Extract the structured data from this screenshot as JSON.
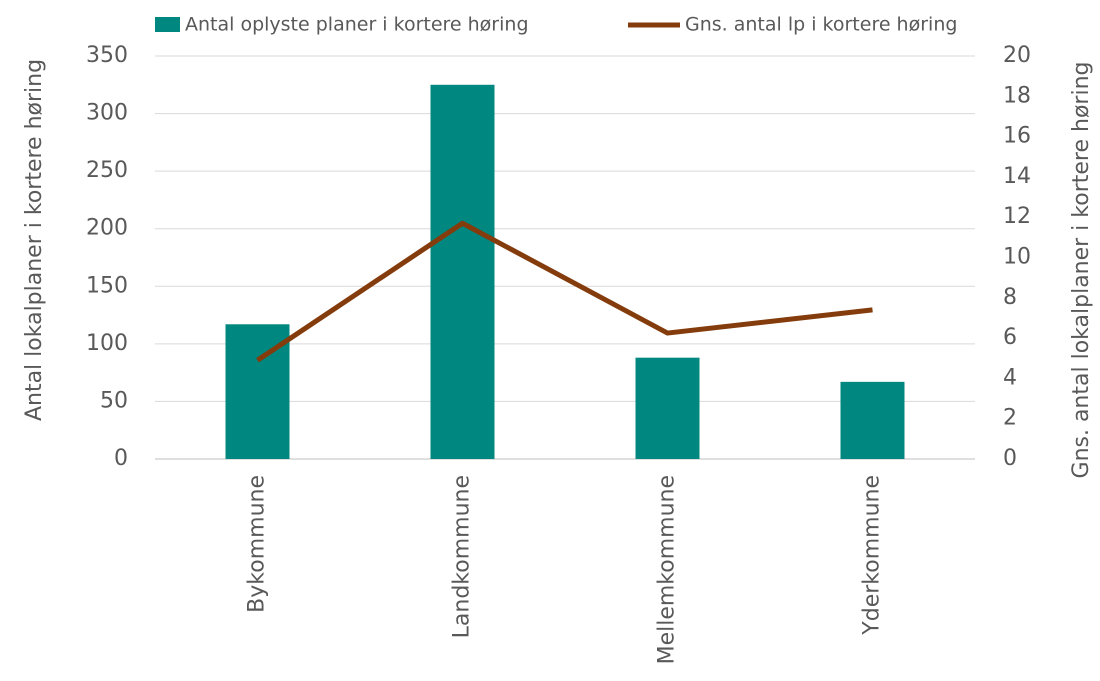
{
  "chart_data": {
    "type": "bar",
    "categories": [
      "Bykommune",
      "Landkommune",
      "Mellemkommune",
      "Yderkommune"
    ],
    "series": [
      {
        "name": "Antal oplyste planer i kortere høring",
        "type": "bar",
        "color": "#00877f",
        "values": [
          117,
          325,
          88,
          67
        ]
      },
      {
        "name": "Gns. antal lp i kortere høring",
        "type": "line",
        "axis": "y2",
        "color": "#843c0c",
        "values": [
          4.9,
          11.7,
          6.25,
          7.4
        ]
      }
    ],
    "ylabel": "Antal lokalplaner i kortere høring",
    "y2label": "Gns. antal lokalplaner i kortere høring",
    "ylim": [
      0,
      350
    ],
    "yticks": [
      0,
      50,
      100,
      150,
      200,
      250,
      300,
      350
    ],
    "y2lim": [
      0,
      20
    ],
    "y2ticks": [
      0,
      2,
      4,
      6,
      8,
      10,
      12,
      14,
      16,
      18,
      20
    ],
    "grid": true,
    "legend": "top"
  }
}
